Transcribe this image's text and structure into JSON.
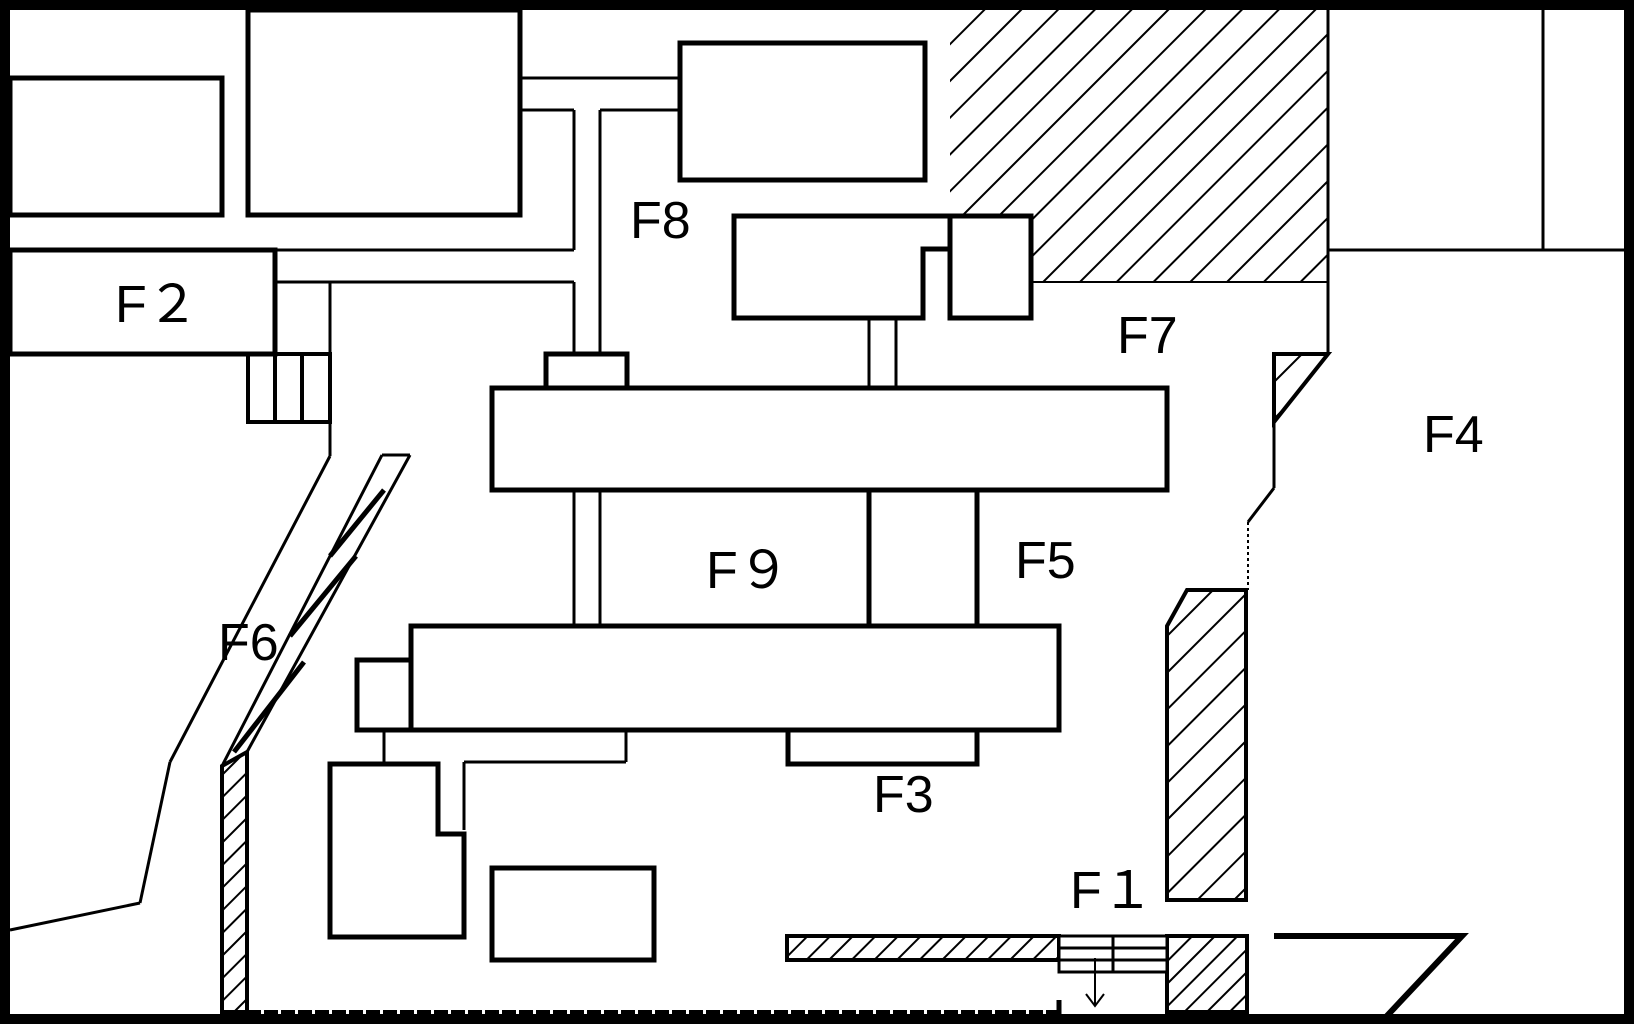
{
  "map": {
    "colors": {
      "line": "#000000",
      "background": "#ffffff"
    },
    "labels": {
      "f1": "F１",
      "f2": "F２",
      "f3": "F3",
      "f4": "F4",
      "f5": "F5",
      "f6": "F6",
      "f7": "F7",
      "f8": "F8",
      "f9": "F９"
    }
  }
}
